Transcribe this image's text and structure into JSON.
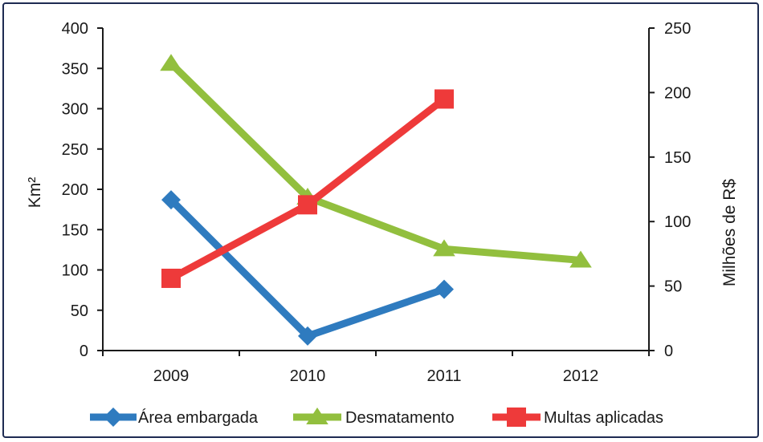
{
  "chart_data": {
    "type": "line",
    "categories": [
      "2009",
      "2010",
      "2011",
      "2012"
    ],
    "left_axis": {
      "label": "Km²",
      "ylim": [
        0,
        400
      ],
      "ticks": [
        "0",
        "50",
        "100",
        "150",
        "200",
        "250",
        "300",
        "350",
        "400"
      ],
      "tick_values": [
        0,
        50,
        100,
        150,
        200,
        250,
        300,
        350,
        400
      ]
    },
    "right_axis": {
      "label": "Milhões de R$",
      "ylim": [
        0,
        250
      ],
      "ticks": [
        "0",
        "50",
        "100",
        "150",
        "200",
        "250"
      ],
      "tick_values": [
        0,
        50,
        100,
        150,
        200,
        250
      ]
    },
    "series": [
      {
        "name": "Área embargada",
        "axis": "left",
        "color": "#2f7bbf",
        "marker": "diamond",
        "values": [
          187,
          18,
          76,
          null
        ]
      },
      {
        "name": "Desmatamento",
        "axis": "left",
        "color": "#92bf3e",
        "marker": "triangle",
        "values": [
          356,
          190,
          126,
          112
        ]
      },
      {
        "name": "Multas aplicadas",
        "axis": "right",
        "color": "#ee3a3a",
        "marker": "square",
        "values": [
          56,
          113,
          195,
          null
        ]
      }
    ],
    "legend": {
      "position": "bottom",
      "items": [
        "Área embargada",
        "Desmatamento",
        "Multas aplicadas"
      ]
    },
    "grid": false
  }
}
